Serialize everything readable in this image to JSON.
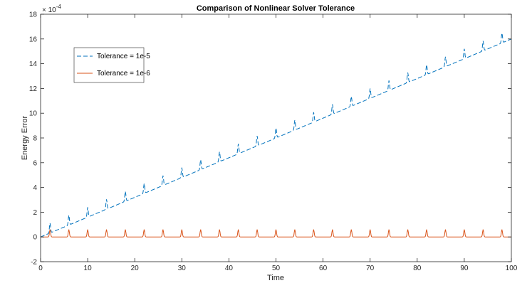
{
  "chart_data": {
    "type": "line",
    "title": "Comparison of Nonlinear Solver Tolerance",
    "xlabel": "Time",
    "ylabel": "Energy Error",
    "y_exponent_base": "× 10",
    "y_exponent_power": "-4",
    "xlim": [
      0,
      100
    ],
    "ylim": [
      -2,
      18
    ],
    "x_ticks": [
      0,
      10,
      20,
      30,
      40,
      50,
      60,
      70,
      80,
      90,
      100
    ],
    "y_ticks": [
      -2,
      0,
      2,
      4,
      6,
      8,
      10,
      12,
      14,
      16,
      18
    ],
    "grid": false,
    "legend_placement": "top-left",
    "series": [
      {
        "name": "Tolerance = 1e-5",
        "color": "#0072BD",
        "line_style": "dashed",
        "trend_start": 0.0,
        "trend_end": 16.0,
        "spike_times": [
          2,
          6,
          10,
          14,
          18,
          22,
          26,
          30,
          34,
          38,
          42,
          46,
          50,
          54,
          58,
          62,
          66,
          70,
          74,
          78,
          82,
          86,
          90,
          94,
          98
        ],
        "spike_height": 0.8
      },
      {
        "name": "Tolerance = 1e-6",
        "color": "#D95319",
        "line_style": "solid",
        "baseline": 0.0,
        "spike_times": [
          2,
          6,
          10,
          14,
          18,
          22,
          26,
          30,
          34,
          38,
          42,
          46,
          50,
          54,
          58,
          62,
          66,
          70,
          74,
          78,
          82,
          86,
          90,
          94,
          98
        ],
        "spike_height": 0.6
      }
    ]
  }
}
